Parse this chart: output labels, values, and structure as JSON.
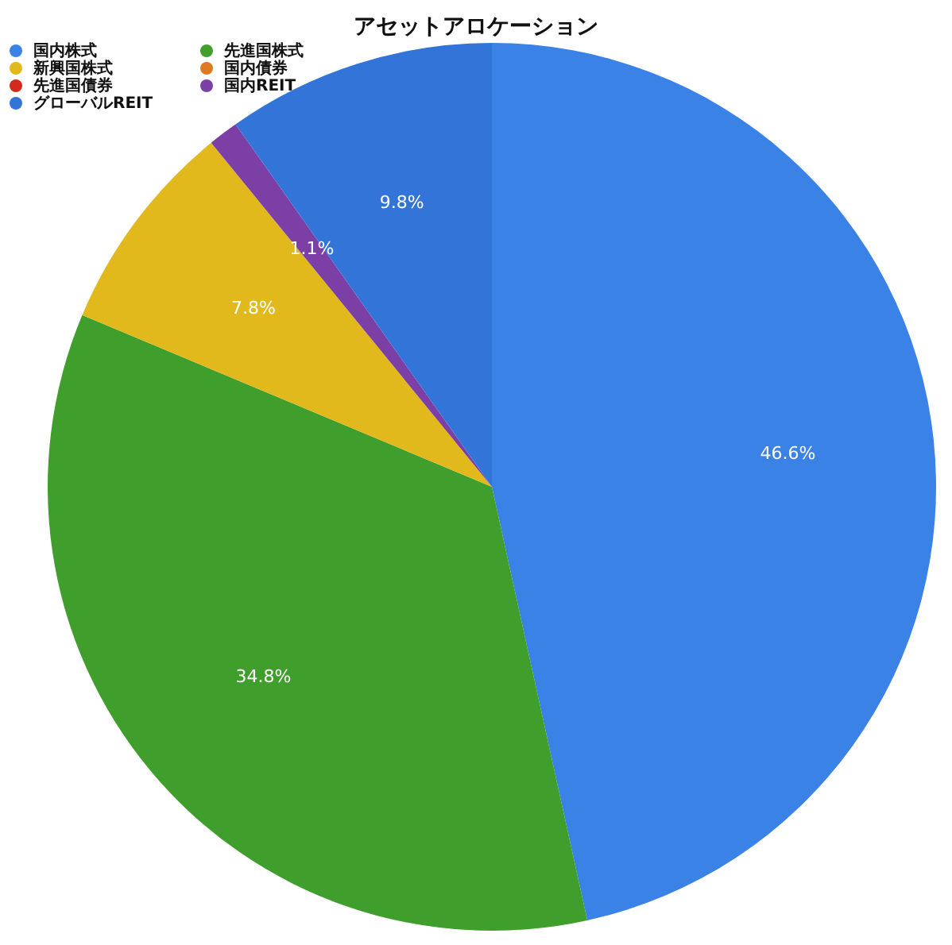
{
  "chart_data": {
    "type": "pie",
    "title": "アセットアロケーション",
    "categories": [
      "国内株式",
      "先進国株式",
      "新興国株式",
      "国内債券",
      "先進国債券",
      "国内REIT",
      "グローバルREIT"
    ],
    "values": [
      46.6,
      34.8,
      7.8,
      0,
      0,
      1.1,
      9.8
    ],
    "colors": [
      "#3a82e6",
      "#3f9e2c",
      "#e2b91c",
      "#e07a22",
      "#d42a1e",
      "#7b3fa6",
      "#3274d8"
    ],
    "value_labels": [
      "46.6%",
      "34.8%",
      "7.8%",
      null,
      null,
      "1.1%",
      "9.8%"
    ],
    "legend": "top left"
  }
}
